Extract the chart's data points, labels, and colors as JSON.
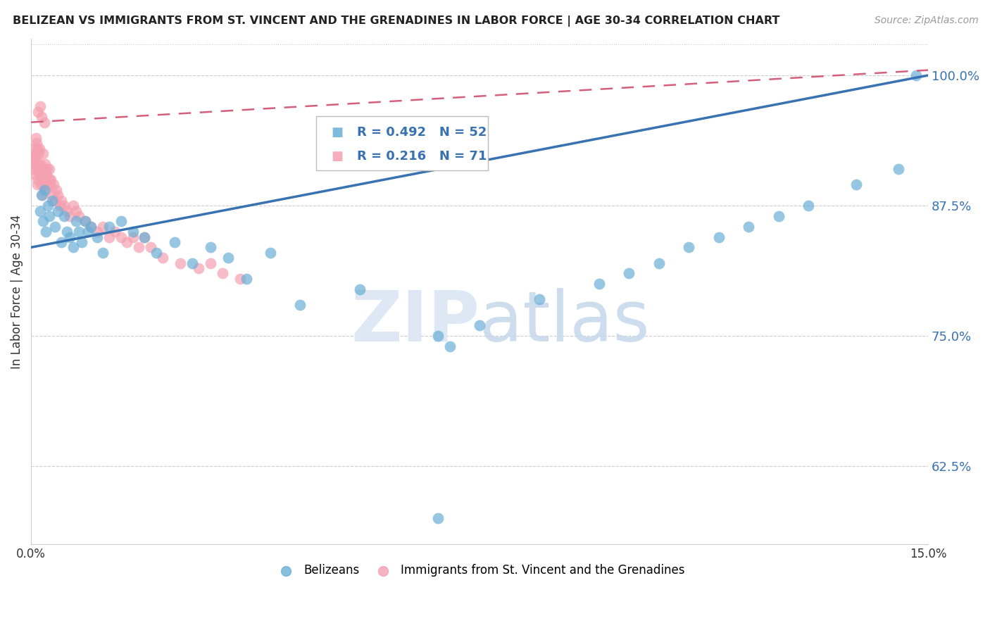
{
  "title": "BELIZEAN VS IMMIGRANTS FROM ST. VINCENT AND THE GRENADINES IN LABOR FORCE | AGE 30-34 CORRELATION CHART",
  "source": "Source: ZipAtlas.com",
  "ylabel": "In Labor Force | Age 30-34",
  "xlim": [
    0.0,
    15.0
  ],
  "ylim": [
    55.0,
    103.5
  ],
  "yticks": [
    62.5,
    75.0,
    87.5,
    100.0
  ],
  "ytick_labels": [
    "62.5%",
    "75.0%",
    "87.5%",
    "100.0%"
  ],
  "legend_blue_R": "0.492",
  "legend_blue_N": "52",
  "legend_pink_R": "0.216",
  "legend_pink_N": "71",
  "legend_label_blue": "Belizeans",
  "legend_label_pink": "Immigrants from St. Vincent and the Grenadines",
  "blue_color": "#6aaed6",
  "pink_color": "#f4a0b0",
  "blue_line_color": "#3872b0",
  "pink_line_color": "#d45f7a",
  "blue_scatter_x": [
    0.15,
    0.18,
    0.2,
    0.22,
    0.25,
    0.28,
    0.3,
    0.35,
    0.4,
    0.45,
    0.5,
    0.55,
    0.6,
    0.65,
    0.7,
    0.75,
    0.8,
    0.85,
    0.9,
    0.95,
    1.0,
    1.1,
    1.2,
    1.3,
    1.5,
    1.7,
    1.9,
    2.1,
    2.4,
    2.7,
    3.0,
    3.3,
    3.6,
    4.0,
    4.5,
    5.5,
    6.8,
    7.0,
    7.5,
    8.5,
    9.5,
    10.0,
    10.5,
    11.0,
    11.5,
    12.0,
    12.5,
    13.0,
    13.8,
    14.5,
    14.8,
    6.8
  ],
  "blue_scatter_y": [
    87.0,
    88.5,
    86.0,
    89.0,
    85.0,
    87.5,
    86.5,
    88.0,
    85.5,
    87.0,
    84.0,
    86.5,
    85.0,
    84.5,
    83.5,
    86.0,
    85.0,
    84.0,
    86.0,
    85.0,
    85.5,
    84.5,
    83.0,
    85.5,
    86.0,
    85.0,
    84.5,
    83.0,
    84.0,
    82.0,
    83.5,
    82.5,
    80.5,
    83.0,
    78.0,
    79.5,
    75.0,
    74.0,
    76.0,
    78.5,
    80.0,
    81.0,
    82.0,
    83.5,
    84.5,
    85.5,
    86.5,
    87.5,
    89.5,
    91.0,
    100.0,
    57.5
  ],
  "pink_scatter_x": [
    0.02,
    0.04,
    0.05,
    0.06,
    0.07,
    0.08,
    0.09,
    0.1,
    0.1,
    0.11,
    0.12,
    0.13,
    0.14,
    0.15,
    0.15,
    0.16,
    0.17,
    0.18,
    0.19,
    0.2,
    0.2,
    0.21,
    0.22,
    0.23,
    0.24,
    0.25,
    0.26,
    0.27,
    0.28,
    0.3,
    0.3,
    0.32,
    0.33,
    0.35,
    0.37,
    0.4,
    0.42,
    0.45,
    0.48,
    0.5,
    0.55,
    0.6,
    0.65,
    0.7,
    0.75,
    0.8,
    0.9,
    1.0,
    1.1,
    1.2,
    1.3,
    1.4,
    1.5,
    1.6,
    1.7,
    1.8,
    1.9,
    2.0,
    2.2,
    2.5,
    2.8,
    3.0,
    3.2,
    3.5,
    0.12,
    0.15,
    0.18,
    0.22,
    0.1,
    0.08,
    0.06
  ],
  "pink_scatter_y": [
    91.0,
    92.0,
    93.0,
    91.5,
    90.5,
    92.5,
    93.5,
    91.0,
    89.5,
    90.0,
    91.5,
    92.5,
    93.0,
    90.5,
    91.5,
    89.5,
    91.0,
    90.0,
    88.5,
    91.0,
    92.5,
    89.5,
    90.5,
    91.5,
    90.0,
    89.0,
    90.5,
    91.0,
    89.5,
    90.0,
    91.0,
    89.5,
    90.0,
    88.5,
    89.5,
    88.0,
    89.0,
    88.5,
    87.5,
    88.0,
    87.5,
    87.0,
    86.5,
    87.5,
    87.0,
    86.5,
    86.0,
    85.5,
    85.0,
    85.5,
    84.5,
    85.0,
    84.5,
    84.0,
    84.5,
    83.5,
    84.5,
    83.5,
    82.5,
    82.0,
    81.5,
    82.0,
    81.0,
    80.5,
    96.5,
    97.0,
    96.0,
    95.5,
    93.0,
    94.0,
    92.0
  ],
  "blue_reg_x0": 0.0,
  "blue_reg_y0": 83.5,
  "blue_reg_x1": 15.0,
  "blue_reg_y1": 100.0,
  "pink_reg_x0": 0.0,
  "pink_reg_y0": 95.5,
  "pink_reg_x1": 15.0,
  "pink_reg_y1": 100.5
}
